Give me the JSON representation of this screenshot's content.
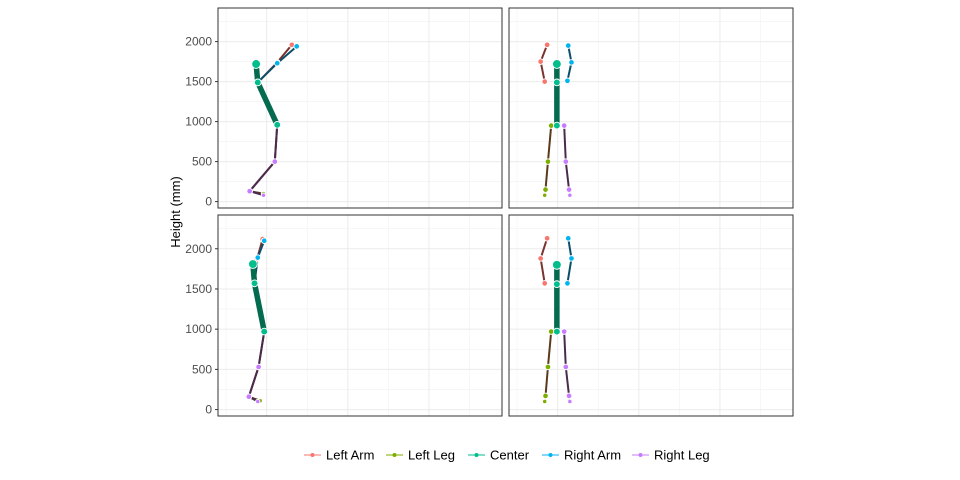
{
  "chart_data": {
    "type": "line",
    "title": "",
    "ylabel": "Height (mm)",
    "ylim": [
      -80,
      2420
    ],
    "yticks": [
      0,
      500,
      1000,
      1500,
      2000
    ],
    "grid": true,
    "legend_position": "bottom",
    "series": [
      {
        "name": "Left Arm",
        "color": "#F8766D"
      },
      {
        "name": "Left Leg",
        "color": "#7CAE00"
      },
      {
        "name": "Center",
        "color": "#00BE8C"
      },
      {
        "name": "Right Arm",
        "color": "#00B4EF"
      },
      {
        "name": "Right Leg",
        "color": "#C77CFF"
      }
    ],
    "panels": [
      {
        "segments": {
          "Center": [
            [
              -13,
              1720
            ],
            [
              -11,
              1490
            ],
            [
              13,
              960
            ]
          ],
          "Left Arm": [
            [
              -11,
              1490
            ],
            [
              13,
              1740
            ],
            [
              31,
              1960
            ]
          ],
          "Right Arm": [
            [
              -11,
              1490
            ],
            [
              13,
              1730
            ],
            [
              37,
              1940
            ]
          ],
          "Left Leg": [
            [
              13,
              960
            ],
            [
              10,
              500
            ],
            [
              -21,
              130
            ],
            [
              -4,
              100
            ]
          ],
          "Right Leg": [
            [
              13,
              960
            ],
            [
              10,
              500
            ],
            [
              -21,
              130
            ],
            [
              -4,
              80
            ]
          ]
        }
      },
      {
        "segments": {
          "Center": [
            [
              -1,
              1720
            ],
            [
              -1,
              1490
            ],
            [
              -1,
              950
            ]
          ],
          "Left Arm": [
            [
              -16,
              1500
            ],
            [
              -21,
              1750
            ],
            [
              -13,
              1960
            ]
          ],
          "Right Arm": [
            [
              12,
              1510
            ],
            [
              17,
              1740
            ],
            [
              13,
              1950
            ]
          ],
          "Left Leg": [
            [
              -8,
              950
            ],
            [
              -12,
              500
            ],
            [
              -15,
              150
            ],
            [
              -16,
              80
            ]
          ],
          "Right Leg": [
            [
              8,
              950
            ],
            [
              10,
              500
            ],
            [
              14,
              150
            ],
            [
              15,
              80
            ]
          ]
        }
      },
      {
        "segments": {
          "Center": [
            [
              -17,
              1810
            ],
            [
              -15,
              1570
            ],
            [
              -3,
              970
            ]
          ],
          "Left Arm": [
            [
              -15,
              1570
            ],
            [
              -12,
              1870
            ],
            [
              -5,
              2120
            ]
          ],
          "Right Arm": [
            [
              -15,
              1570
            ],
            [
              -11,
              1890
            ],
            [
              -3,
              2100
            ]
          ],
          "Left Leg": [
            [
              -3,
              970
            ],
            [
              -10,
              530
            ],
            [
              -22,
              160
            ],
            [
              -8,
              110
            ]
          ],
          "Right Leg": [
            [
              -3,
              970
            ],
            [
              -10,
              530
            ],
            [
              -22,
              160
            ],
            [
              -11,
              100
            ]
          ]
        }
      },
      {
        "segments": {
          "Center": [
            [
              -1,
              1800
            ],
            [
              -1,
              1560
            ],
            [
              -1,
              970
            ]
          ],
          "Left Arm": [
            [
              -16,
              1570
            ],
            [
              -21,
              1880
            ],
            [
              -13,
              2130
            ]
          ],
          "Right Arm": [
            [
              12,
              1570
            ],
            [
              17,
              1880
            ],
            [
              13,
              2130
            ]
          ],
          "Left Leg": [
            [
              -8,
              970
            ],
            [
              -12,
              530
            ],
            [
              -15,
              170
            ],
            [
              -16,
              100
            ]
          ],
          "Right Leg": [
            [
              8,
              970
            ],
            [
              10,
              530
            ],
            [
              14,
              170
            ],
            [
              15,
              100
            ]
          ]
        }
      }
    ]
  }
}
